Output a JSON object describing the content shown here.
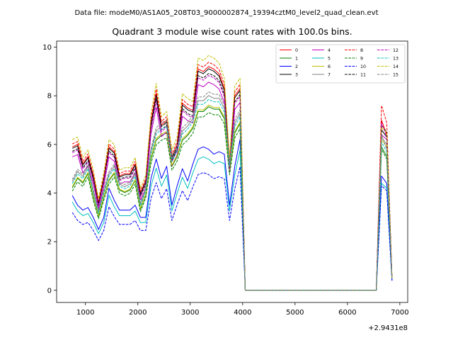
{
  "chart_data": {
    "type": "line",
    "suptitle": "Data file: modeM0/AS1A05_208T03_9000002874_19394cztM0_level2_quad_clean.evt",
    "title": "Quadrant 3 module wise count rates with 100.0s bins.",
    "xlabel": "",
    "ylabel": "",
    "x_offset_label": "+2.9431e8",
    "xlim": [
      450,
      7150
    ],
    "ylim": [
      -0.5,
      10.25
    ],
    "x_ticks": [
      1000,
      2000,
      3000,
      4000,
      5000,
      6000,
      7000
    ],
    "y_ticks": [
      0,
      2,
      4,
      6,
      8,
      10
    ],
    "legend_position": "top-right",
    "legend_columns": 4,
    "series": [
      {
        "name": "0",
        "color": "#ff0000",
        "dash": "solid"
      },
      {
        "name": "1",
        "color": "#008000",
        "dash": "solid"
      },
      {
        "name": "2",
        "color": "#0000ff",
        "dash": "solid"
      },
      {
        "name": "3",
        "color": "#000000",
        "dash": "solid"
      },
      {
        "name": "4",
        "color": "#bf00bf",
        "dash": "solid"
      },
      {
        "name": "5",
        "color": "#00bfbf",
        "dash": "solid"
      },
      {
        "name": "6",
        "color": "#bfbf00",
        "dash": "solid"
      },
      {
        "name": "7",
        "color": "#808080",
        "dash": "solid"
      },
      {
        "name": "8",
        "color": "#ff0000",
        "dash": "dashed"
      },
      {
        "name": "9",
        "color": "#008000",
        "dash": "dashed"
      },
      {
        "name": "10",
        "color": "#0000ff",
        "dash": "dashed"
      },
      {
        "name": "11",
        "color": "#000000",
        "dash": "dashed"
      },
      {
        "name": "12",
        "color": "#bf00bf",
        "dash": "dashed"
      },
      {
        "name": "13",
        "color": "#00bfbf",
        "dash": "dashed"
      },
      {
        "name": "14",
        "color": "#bfbf00",
        "dash": "dashed"
      },
      {
        "name": "15",
        "color": "#808080",
        "dash": "dashed"
      }
    ],
    "segment1_x": [
      750,
      850,
      950,
      1050,
      1150,
      1250,
      1350,
      1450,
      1550,
      1650,
      1750,
      1850,
      1950,
      2050,
      2150,
      2250,
      2350,
      2450,
      2550,
      2650,
      2750,
      2850,
      2950,
      3050,
      3150,
      3250,
      3350,
      3450,
      3550,
      3650,
      3750,
      3850,
      3950
    ],
    "gap_x": [
      4050,
      4150,
      6450,
      6550
    ],
    "segment2_x": [
      6650,
      6750,
      6850
    ],
    "reference_profiles": {
      "ref_high": [
        5.9,
        6.0,
        5.2,
        5.5,
        4.7,
        3.6,
        4.6,
        5.9,
        5.7,
        4.7,
        4.8,
        4.8,
        5.2,
        4.0,
        4.5,
        6.9,
        8.1,
        6.8,
        7.0,
        5.5,
        6.0,
        7.7,
        7.5,
        7.4,
        9.1,
        9.0,
        9.2,
        9.1,
        8.9,
        8.3,
        5.2,
        8.0,
        8.3
      ],
      "ref_mid": [
        4.3,
        4.7,
        4.5,
        4.9,
        3.9,
        3.1,
        3.9,
        4.6,
        4.9,
        4.2,
        4.1,
        4.2,
        4.6,
        3.4,
        4.0,
        5.5,
        6.3,
        6.5,
        6.6,
        5.2,
        5.6,
        6.3,
        6.5,
        6.8,
        7.5,
        7.5,
        7.7,
        7.6,
        7.6,
        7.2,
        5.0,
        6.6,
        7.0
      ],
      "ref_low": [
        3.9,
        3.5,
        3.3,
        3.4,
        3.0,
        2.5,
        3.0,
        4.2,
        3.7,
        3.3,
        3.3,
        3.3,
        3.5,
        3.0,
        3.0,
        4.6,
        5.4,
        4.6,
        5.1,
        3.5,
        4.3,
        5.0,
        4.5,
        5.2,
        5.8,
        5.9,
        5.8,
        5.6,
        5.7,
        5.6,
        3.5,
        5.1,
        6.2
      ]
    },
    "segment2_ref": {
      "ref_high": [
        6.8,
        6.6,
        0.5
      ],
      "ref_mid": [
        6.0,
        5.6,
        0.5
      ],
      "ref_low": [
        4.6,
        4.3,
        0.4
      ]
    },
    "series_scales": [
      {
        "ref": "ref_high",
        "factor": 1.0,
        "s2": [
          7.0,
          6.4,
          0.5
        ]
      },
      {
        "ref": "ref_mid",
        "factor": 0.98,
        "s2": [
          5.9,
          5.5,
          0.5
        ]
      },
      {
        "ref": "ref_low",
        "factor": 1.0,
        "s2": [
          4.7,
          4.4,
          0.4
        ]
      },
      {
        "ref": "ref_high",
        "factor": 0.99,
        "s2": [
          6.6,
          6.3,
          0.5
        ]
      },
      {
        "ref": "ref_high",
        "factor": 0.93,
        "s2": [
          6.4,
          6.2,
          0.5
        ]
      },
      {
        "ref": "ref_low",
        "factor": 0.93,
        "s2": [
          4.4,
          4.2,
          0.4
        ]
      },
      {
        "ref": "ref_mid",
        "factor": 0.99,
        "s2": [
          6.2,
          5.9,
          0.5
        ]
      },
      {
        "ref": "ref_mid",
        "factor": 1.04,
        "s2": [
          6.3,
          6.0,
          0.5
        ]
      },
      {
        "ref": "ref_high",
        "factor": 1.02,
        "s2": [
          7.6,
          6.9,
          0.5
        ]
      },
      {
        "ref": "ref_mid",
        "factor": 0.95,
        "s2": [
          5.8,
          5.4,
          0.5
        ]
      },
      {
        "ref": "ref_low",
        "factor": 0.82,
        "s2": [
          4.3,
          4.1,
          0.4
        ]
      },
      {
        "ref": "ref_high",
        "factor": 0.97,
        "s2": [
          6.8,
          6.5,
          0.5
        ]
      },
      {
        "ref": "ref_high",
        "factor": 0.96,
        "s2": [
          6.9,
          6.3,
          0.5
        ]
      },
      {
        "ref": "ref_mid",
        "factor": 1.02,
        "s2": [
          6.1,
          5.7,
          0.5
        ]
      },
      {
        "ref": "ref_high",
        "factor": 1.05,
        "s2": [
          6.7,
          6.5,
          0.5
        ]
      },
      {
        "ref": "ref_mid",
        "factor": 1.06,
        "s2": [
          6.4,
          5.8,
          0.5
        ]
      }
    ]
  }
}
